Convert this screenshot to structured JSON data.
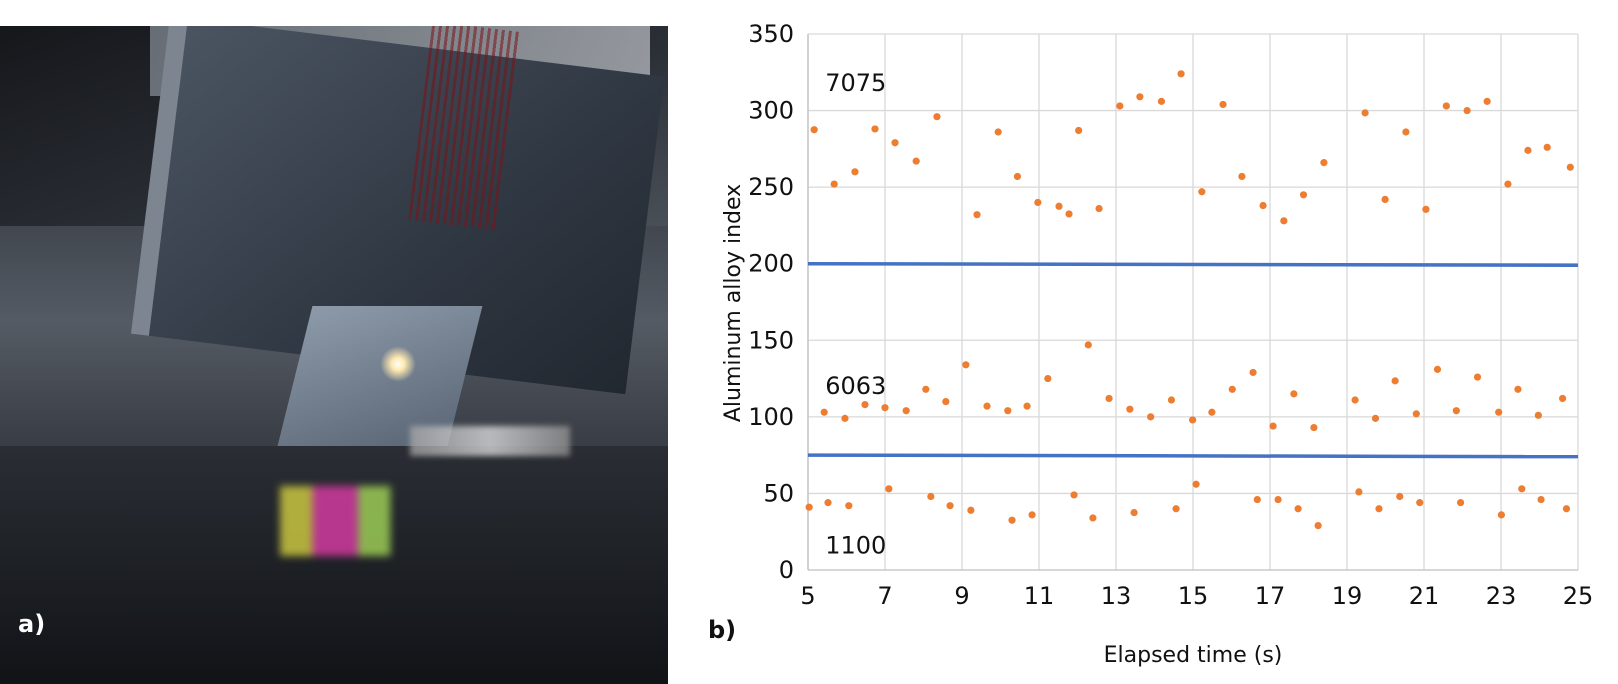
{
  "panel_a": {
    "label": "a)"
  },
  "panel_b": {
    "label": "b)"
  },
  "chart_data": {
    "type": "scatter",
    "xlabel": "Elapsed time (s)",
    "ylabel": "Aluminum alloy index",
    "xlim": [
      5,
      25
    ],
    "ylim": [
      0,
      350
    ],
    "xticks": [
      5,
      7,
      9,
      11,
      13,
      15,
      17,
      19,
      21,
      23,
      25
    ],
    "yticks": [
      0,
      50,
      100,
      150,
      200,
      250,
      300,
      350
    ],
    "grid": true,
    "point_color": "#ED7D31",
    "line_color": "#4472C4",
    "annotations": [
      {
        "text": "7075",
        "x": 5.5,
        "y": 318
      },
      {
        "text": "6063",
        "x": 5.5,
        "y": 120
      },
      {
        "text": "1100",
        "x": 5.5,
        "y": 16
      }
    ],
    "threshold_lines": [
      {
        "y_start": 200,
        "y_end": 199
      },
      {
        "y_start": 75,
        "y_end": 74
      }
    ],
    "series": [
      {
        "points": [
          [
            5.16,
            287.5
          ],
          [
            5.68,
            252
          ],
          [
            6.22,
            260
          ],
          [
            6.74,
            288
          ],
          [
            7.26,
            279
          ],
          [
            7.81,
            267
          ],
          [
            8.35,
            296
          ],
          [
            9.39,
            232
          ],
          [
            9.94,
            286
          ],
          [
            10.44,
            257
          ],
          [
            10.97,
            240
          ],
          [
            11.52,
            237.5
          ],
          [
            11.78,
            232.5
          ],
          [
            12.03,
            287
          ],
          [
            12.56,
            236
          ],
          [
            13.1,
            303
          ],
          [
            13.62,
            309
          ],
          [
            14.18,
            306
          ],
          [
            14.69,
            324
          ],
          [
            15.23,
            247
          ],
          [
            15.78,
            304
          ],
          [
            16.27,
            257
          ],
          [
            16.82,
            238
          ],
          [
            17.36,
            228
          ],
          [
            17.87,
            245
          ],
          [
            18.4,
            266
          ],
          [
            19.47,
            298.5
          ],
          [
            19.99,
            242
          ],
          [
            20.53,
            286
          ],
          [
            21.05,
            235.5
          ],
          [
            21.58,
            303
          ],
          [
            22.12,
            300
          ],
          [
            22.64,
            306
          ],
          [
            23.18,
            252
          ],
          [
            23.7,
            274
          ],
          [
            24.2,
            276
          ],
          [
            24.8,
            263
          ]
        ]
      },
      {
        "points": [
          [
            5.42,
            103
          ],
          [
            5.96,
            99
          ],
          [
            6.48,
            108
          ],
          [
            7.0,
            106
          ],
          [
            7.55,
            104
          ],
          [
            8.06,
            118
          ],
          [
            8.58,
            110
          ],
          [
            9.1,
            134
          ],
          [
            9.65,
            107
          ],
          [
            10.19,
            104
          ],
          [
            10.69,
            107
          ],
          [
            11.23,
            125
          ],
          [
            12.28,
            147
          ],
          [
            12.82,
            112
          ],
          [
            13.36,
            105
          ],
          [
            13.9,
            100
          ],
          [
            14.44,
            111
          ],
          [
            14.99,
            98
          ],
          [
            15.49,
            103
          ],
          [
            16.02,
            118
          ],
          [
            16.56,
            129
          ],
          [
            17.08,
            94
          ],
          [
            17.62,
            115
          ],
          [
            18.14,
            93
          ],
          [
            19.21,
            111
          ],
          [
            19.74,
            99
          ],
          [
            20.25,
            123.5
          ],
          [
            20.8,
            102
          ],
          [
            21.35,
            131
          ],
          [
            21.84,
            104
          ],
          [
            22.39,
            126
          ],
          [
            22.94,
            103
          ],
          [
            23.44,
            118
          ],
          [
            23.97,
            101
          ],
          [
            24.6,
            112
          ]
        ]
      },
      {
        "points": [
          [
            5.03,
            41
          ],
          [
            5.52,
            44
          ],
          [
            6.06,
            42
          ],
          [
            7.1,
            53
          ],
          [
            8.19,
            48
          ],
          [
            8.69,
            42
          ],
          [
            9.23,
            39
          ],
          [
            10.3,
            32.5
          ],
          [
            10.82,
            36
          ],
          [
            11.91,
            49
          ],
          [
            12.4,
            34
          ],
          [
            13.47,
            37.5
          ],
          [
            14.56,
            40
          ],
          [
            15.08,
            56
          ],
          [
            16.67,
            46
          ],
          [
            17.21,
            46
          ],
          [
            17.73,
            40
          ],
          [
            18.25,
            29
          ],
          [
            19.31,
            51
          ],
          [
            19.83,
            40
          ],
          [
            20.37,
            48
          ],
          [
            20.89,
            44
          ],
          [
            21.95,
            44
          ],
          [
            23.01,
            36
          ],
          [
            23.54,
            53
          ],
          [
            24.04,
            46
          ],
          [
            24.7,
            40
          ]
        ]
      }
    ]
  }
}
